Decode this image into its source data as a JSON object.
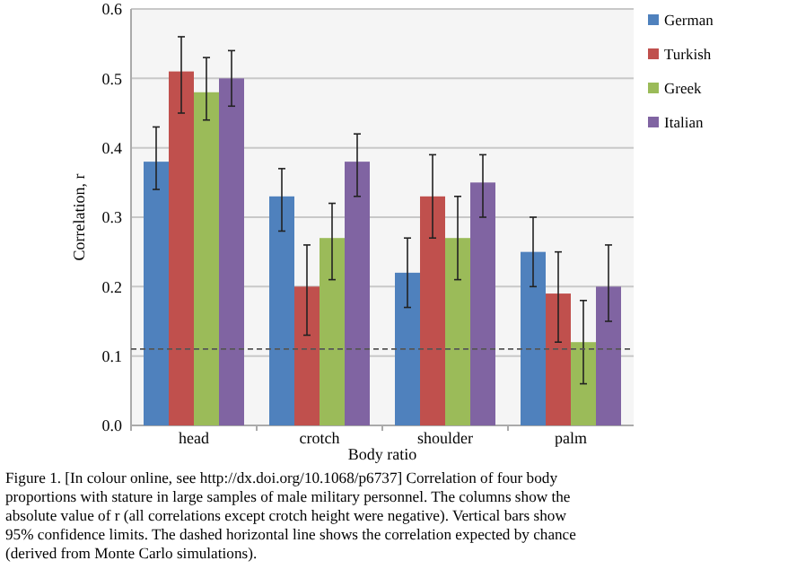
{
  "chart_data": {
    "type": "bar",
    "xlabel": "Body ratio",
    "ylabel": "Correlation, r",
    "categories": [
      "head",
      "crotch",
      "shoulder",
      "palm"
    ],
    "series": [
      {
        "name": "German",
        "color": "#4f81bd",
        "values": [
          0.38,
          0.33,
          0.22,
          0.25
        ],
        "errors": [
          [
            0.34,
            0.43
          ],
          [
            0.28,
            0.37
          ],
          [
            0.17,
            0.27
          ],
          [
            0.2,
            0.3
          ]
        ]
      },
      {
        "name": "Turkish",
        "color": "#c0504d",
        "values": [
          0.51,
          0.2,
          0.33,
          0.19
        ],
        "errors": [
          [
            0.45,
            0.56
          ],
          [
            0.13,
            0.26
          ],
          [
            0.27,
            0.39
          ],
          [
            0.12,
            0.25
          ]
        ]
      },
      {
        "name": "Greek",
        "color": "#9bbb59",
        "values": [
          0.48,
          0.27,
          0.27,
          0.12
        ],
        "errors": [
          [
            0.44,
            0.53
          ],
          [
            0.21,
            0.32
          ],
          [
            0.21,
            0.33
          ],
          [
            0.06,
            0.18
          ]
        ]
      },
      {
        "name": "Italian",
        "color": "#8064a2",
        "values": [
          0.5,
          0.38,
          0.35,
          0.2
        ],
        "errors": [
          [
            0.46,
            0.54
          ],
          [
            0.33,
            0.42
          ],
          [
            0.3,
            0.39
          ],
          [
            0.15,
            0.26
          ]
        ]
      }
    ],
    "ylim": [
      0,
      0.6
    ],
    "yticks": [
      {
        "value": 0,
        "label": "0.0"
      },
      0.1,
      0.2,
      0.3,
      0.4,
      0.5,
      0.6
    ],
    "grid": "y",
    "legend": "right",
    "ref_lines": [
      {
        "axis": "y",
        "value": 0.11,
        "line_style": "dashed",
        "color": "#555555"
      }
    ],
    "annotations": [
      "Figure 1. [In colour online, see http://dx.doi.org/10.1068/p6737] Correlation of four body proportions with stature in large samples of male military personnel. The columns show the absolute value of r (all correlations except crotch height were negative). Vertical bars show 95% confidence limits. The dashed horizontal line shows the correlation expected by chance (derived from Monte Carlo simulations)."
    ]
  }
}
